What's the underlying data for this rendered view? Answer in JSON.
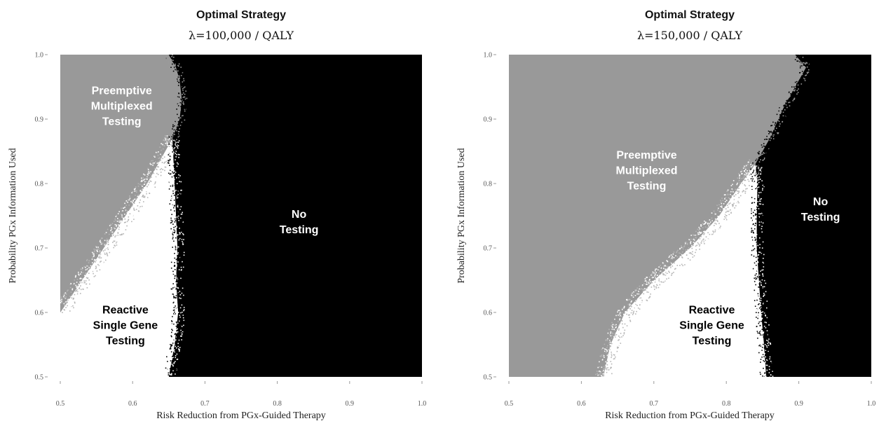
{
  "chart_data": [
    {
      "type": "heatmap",
      "title": "Optimal Strategy",
      "subtitle": "λ=100,000 / QALY",
      "xlabel": "Risk Reduction from PGx-Guided Therapy",
      "ylabel": "Probability PGx Information Used",
      "xlim": [
        0.5,
        1.0
      ],
      "ylim": [
        0.5,
        1.0
      ],
      "x_ticks": [
        "0.5",
        "0.6",
        "0.7",
        "0.8",
        "0.9",
        "1.0"
      ],
      "y_ticks": [
        "0.5",
        "0.6",
        "0.7",
        "0.8",
        "0.9",
        "1.0"
      ],
      "regions": [
        {
          "name": "Preemptive Multiplexed Testing",
          "lines": [
            "Preemptive",
            "Multiplexed",
            "Testing"
          ],
          "color": "#999999",
          "label_color": "#ffffff",
          "label_at": [
            0.585,
            0.92
          ]
        },
        {
          "name": "Reactive Single Gene Testing",
          "lines": [
            "Reactive",
            "Single Gene",
            "Testing"
          ],
          "color": "#ffffff",
          "label_color": "#000000",
          "label_at": [
            0.59,
            0.58
          ]
        },
        {
          "name": "No Testing",
          "lines": [
            "No",
            "Testing"
          ],
          "color": "#000000",
          "label_color": "#ffffff",
          "label_at": [
            0.83,
            0.74
          ]
        }
      ],
      "boundaries": {
        "preemptive_reactive": [
          [
            0.5,
            0.6
          ],
          [
            0.53,
            0.65
          ],
          [
            0.56,
            0.7
          ],
          [
            0.59,
            0.75
          ],
          [
            0.62,
            0.8
          ],
          [
            0.645,
            0.85
          ],
          [
            0.655,
            0.87
          ]
        ],
        "preemptive_notesting": [
          [
            0.655,
            0.87
          ],
          [
            0.665,
            0.9
          ],
          [
            0.668,
            0.93
          ],
          [
            0.665,
            0.96
          ],
          [
            0.66,
            0.98
          ],
          [
            0.65,
            1.0
          ]
        ],
        "reactive_notesting": [
          [
            0.65,
            0.5
          ],
          [
            0.658,
            0.55
          ],
          [
            0.663,
            0.6
          ],
          [
            0.66,
            0.65
          ],
          [
            0.662,
            0.7
          ],
          [
            0.66,
            0.75
          ],
          [
            0.658,
            0.8
          ],
          [
            0.655,
            0.87
          ]
        ],
        "reactive_bottom_end": 0.53
      }
    },
    {
      "type": "heatmap",
      "title": "Optimal Strategy",
      "subtitle": "λ=150,000 / QALY",
      "xlabel": "Risk Reduction from PGx-Guided Therapy",
      "ylabel": "Probability PGx Information Used",
      "xlim": [
        0.5,
        1.0
      ],
      "ylim": [
        0.5,
        1.0
      ],
      "x_ticks": [
        "0.5",
        "0.6",
        "0.7",
        "0.8",
        "0.9",
        "1.0"
      ],
      "y_ticks": [
        "0.5",
        "0.6",
        "0.7",
        "0.8",
        "0.9",
        "1.0"
      ],
      "regions": [
        {
          "name": "Preemptive Multiplexed Testing",
          "lines": [
            "Preemptive",
            "Multiplexed",
            "Testing"
          ],
          "color": "#999999",
          "label_color": "#ffffff",
          "label_at": [
            0.69,
            0.82
          ]
        },
        {
          "name": "Reactive Single Gene Testing",
          "lines": [
            "Reactive",
            "Single Gene",
            "Testing"
          ],
          "color": "#ffffff",
          "label_color": "#000000",
          "label_at": [
            0.78,
            0.58
          ]
        },
        {
          "name": "No Testing",
          "lines": [
            "No",
            "Testing"
          ],
          "color": "#000000",
          "label_color": "#ffffff",
          "label_at": [
            0.93,
            0.76
          ]
        }
      ],
      "boundaries": {
        "preemptive_reactive": [
          [
            0.63,
            0.5
          ],
          [
            0.64,
            0.55
          ],
          [
            0.66,
            0.6
          ],
          [
            0.7,
            0.65
          ],
          [
            0.75,
            0.7
          ],
          [
            0.79,
            0.75
          ],
          [
            0.82,
            0.8
          ],
          [
            0.84,
            0.83
          ]
        ],
        "preemptive_notesting": [
          [
            0.84,
            0.83
          ],
          [
            0.86,
            0.87
          ],
          [
            0.88,
            0.92
          ],
          [
            0.9,
            0.96
          ],
          [
            0.91,
            0.98
          ],
          [
            0.895,
            1.0
          ]
        ],
        "reactive_notesting": [
          [
            0.855,
            0.5
          ],
          [
            0.852,
            0.55
          ],
          [
            0.848,
            0.6
          ],
          [
            0.845,
            0.65
          ],
          [
            0.842,
            0.7
          ],
          [
            0.842,
            0.75
          ],
          [
            0.843,
            0.8
          ],
          [
            0.84,
            0.83
          ]
        ],
        "reactive_bottom_end": 0.665
      }
    }
  ]
}
